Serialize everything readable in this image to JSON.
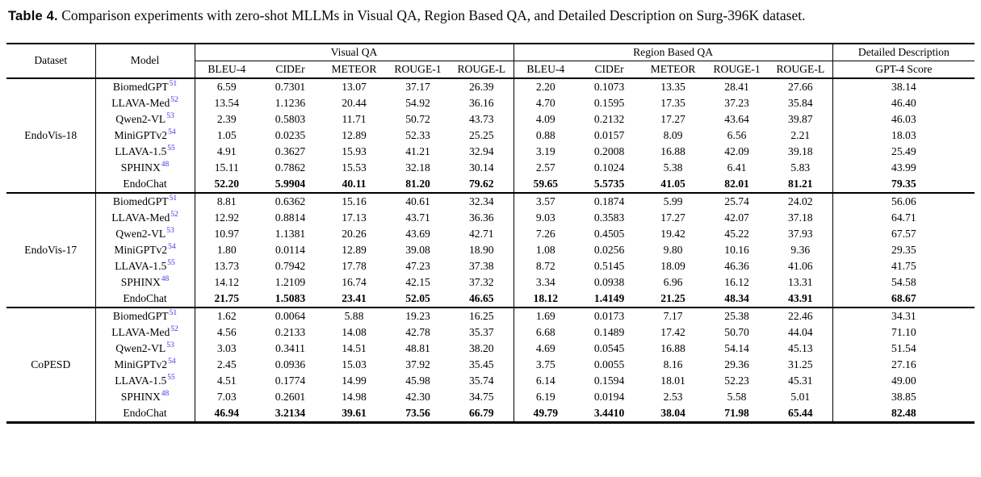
{
  "caption": {
    "label": "Table 4.",
    "text": " Comparison experiments with zero-shot MLLMs in Visual QA, Region Based QA, and Detailed Description on Surg-396K dataset."
  },
  "header": {
    "dataset": "Dataset",
    "model": "Model",
    "groups": [
      {
        "label": "Visual QA",
        "cols": [
          "BLEU-4",
          "CIDEr",
          "METEOR",
          "ROUGE-1",
          "ROUGE-L"
        ]
      },
      {
        "label": "Region Based QA",
        "cols": [
          "BLEU-4",
          "CIDEr",
          "METEOR",
          "ROUGE-1",
          "ROUGE-L"
        ]
      },
      {
        "label": "Detailed Description",
        "cols": [
          "GPT-4 Score"
        ]
      }
    ]
  },
  "colors": {
    "citation_link": "#3838e6",
    "rule": "#000000"
  },
  "blocks": [
    {
      "dataset": "EndoVis-18",
      "rows": [
        {
          "model": "BiomedGPT",
          "cite": "51",
          "bold": false,
          "values": [
            "6.59",
            "0.7301",
            "13.07",
            "37.17",
            "26.39",
            "2.20",
            "0.1073",
            "13.35",
            "28.41",
            "27.66",
            "38.14"
          ]
        },
        {
          "model": "LLAVA-Med",
          "cite": "52",
          "bold": false,
          "values": [
            "13.54",
            "1.1236",
            "20.44",
            "54.92",
            "36.16",
            "4.70",
            "0.1595",
            "17.35",
            "37.23",
            "35.84",
            "46.40"
          ]
        },
        {
          "model": "Qwen2-VL",
          "cite": "53",
          "bold": false,
          "values": [
            "2.39",
            "0.5803",
            "11.71",
            "50.72",
            "43.73",
            "4.09",
            "0.2132",
            "17.27",
            "43.64",
            "39.87",
            "46.03"
          ]
        },
        {
          "model": "MiniGPTv2",
          "cite": "54",
          "bold": false,
          "values": [
            "1.05",
            "0.0235",
            "12.89",
            "52.33",
            "25.25",
            "0.88",
            "0.0157",
            "8.09",
            "6.56",
            "2.21",
            "18.03"
          ]
        },
        {
          "model": "LLAVA-1.5",
          "cite": "55",
          "bold": false,
          "values": [
            "4.91",
            "0.3627",
            "15.93",
            "41.21",
            "32.94",
            "3.19",
            "0.2008",
            "16.88",
            "42.09",
            "39.18",
            "25.49"
          ]
        },
        {
          "model": "SPHINX",
          "cite": "48",
          "bold": false,
          "values": [
            "15.11",
            "0.7862",
            "15.53",
            "32.18",
            "30.14",
            "2.57",
            "0.1024",
            "5.38",
            "6.41",
            "5.83",
            "43.99"
          ]
        },
        {
          "model": "EndoChat",
          "cite": "",
          "bold": true,
          "values": [
            "52.20",
            "5.9904",
            "40.11",
            "81.20",
            "79.62",
            "59.65",
            "5.5735",
            "41.05",
            "82.01",
            "81.21",
            "79.35"
          ]
        }
      ]
    },
    {
      "dataset": "EndoVis-17",
      "rows": [
        {
          "model": "BiomedGPT",
          "cite": "51",
          "bold": false,
          "values": [
            "8.81",
            "0.6362",
            "15.16",
            "40.61",
            "32.34",
            "3.57",
            "0.1874",
            "5.99",
            "25.74",
            "24.02",
            "56.06"
          ]
        },
        {
          "model": "LLAVA-Med",
          "cite": "52",
          "bold": false,
          "values": [
            "12.92",
            "0.8814",
            "17.13",
            "43.71",
            "36.36",
            "9.03",
            "0.3583",
            "17.27",
            "42.07",
            "37.18",
            "64.71"
          ]
        },
        {
          "model": "Qwen2-VL",
          "cite": "53",
          "bold": false,
          "values": [
            "10.97",
            "1.1381",
            "20.26",
            "43.69",
            "42.71",
            "7.26",
            "0.4505",
            "19.42",
            "45.22",
            "37.93",
            "67.57"
          ]
        },
        {
          "model": "MiniGPTv2",
          "cite": "54",
          "bold": false,
          "values": [
            "1.80",
            "0.0114",
            "12.89",
            "39.08",
            "18.90",
            "1.08",
            "0.0256",
            "9.80",
            "10.16",
            "9.36",
            "29.35"
          ]
        },
        {
          "model": "LLAVA-1.5",
          "cite": "55",
          "bold": false,
          "values": [
            "13.73",
            "0.7942",
            "17.78",
            "47.23",
            "37.38",
            "8.72",
            "0.5145",
            "18.09",
            "46.36",
            "41.06",
            "41.75"
          ]
        },
        {
          "model": "SPHINX",
          "cite": "48",
          "bold": false,
          "values": [
            "14.12",
            "1.2109",
            "16.74",
            "42.15",
            "37.32",
            "3.34",
            "0.0938",
            "6.96",
            "16.12",
            "13.31",
            "54.58"
          ]
        },
        {
          "model": "EndoChat",
          "cite": "",
          "bold": true,
          "values": [
            "21.75",
            "1.5083",
            "23.41",
            "52.05",
            "46.65",
            "18.12",
            "1.4149",
            "21.25",
            "48.34",
            "43.91",
            "68.67"
          ]
        }
      ]
    },
    {
      "dataset": "CoPESD",
      "rows": [
        {
          "model": "BiomedGPT",
          "cite": "51",
          "bold": false,
          "values": [
            "1.62",
            "0.0064",
            "5.88",
            "19.23",
            "16.25",
            "1.69",
            "0.0173",
            "7.17",
            "25.38",
            "22.46",
            "34.31"
          ]
        },
        {
          "model": "LLAVA-Med",
          "cite": "52",
          "bold": false,
          "values": [
            "4.56",
            "0.2133",
            "14.08",
            "42.78",
            "35.37",
            "6.68",
            "0.1489",
            "17.42",
            "50.70",
            "44.04",
            "71.10"
          ]
        },
        {
          "model": "Qwen2-VL",
          "cite": "53",
          "bold": false,
          "values": [
            "3.03",
            "0.3411",
            "14.51",
            "48.81",
            "38.20",
            "4.69",
            "0.0545",
            "16.88",
            "54.14",
            "45.13",
            "51.54"
          ]
        },
        {
          "model": "MiniGPTv2",
          "cite": "54",
          "bold": false,
          "values": [
            "2.45",
            "0.0936",
            "15.03",
            "37.92",
            "35.45",
            "3.75",
            "0.0055",
            "8.16",
            "29.36",
            "31.25",
            "27.16"
          ]
        },
        {
          "model": "LLAVA-1.5",
          "cite": "55",
          "bold": false,
          "values": [
            "4.51",
            "0.1774",
            "14.99",
            "45.98",
            "35.74",
            "6.14",
            "0.1594",
            "18.01",
            "52.23",
            "45.31",
            "49.00"
          ]
        },
        {
          "model": "SPHINX",
          "cite": "48",
          "bold": false,
          "values": [
            "7.03",
            "0.2601",
            "14.98",
            "42.30",
            "34.75",
            "6.19",
            "0.0194",
            "2.53",
            "5.58",
            "5.01",
            "38.85"
          ]
        },
        {
          "model": "EndoChat",
          "cite": "",
          "bold": true,
          "values": [
            "46.94",
            "3.2134",
            "39.61",
            "73.56",
            "66.79",
            "49.79",
            "3.4410",
            "38.04",
            "71.98",
            "65.44",
            "82.48"
          ]
        }
      ]
    }
  ]
}
